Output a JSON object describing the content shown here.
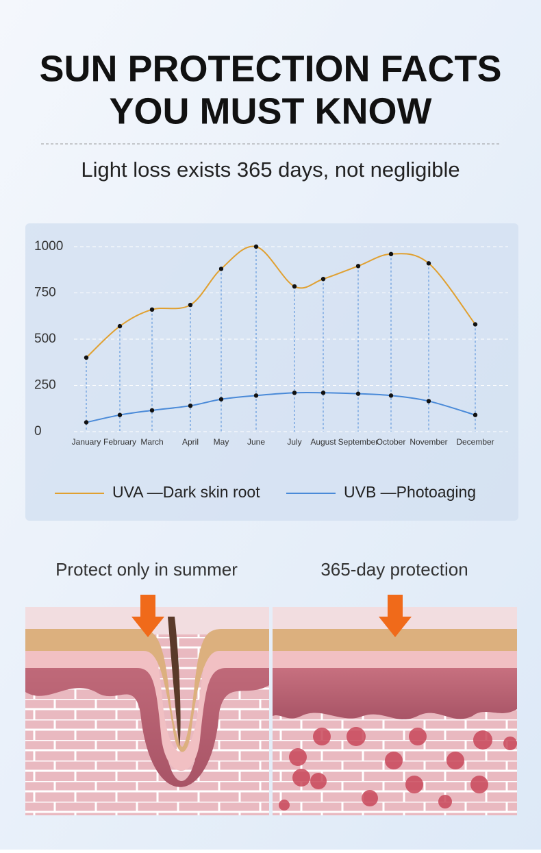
{
  "header": {
    "title_line1": "SUN PROTECTION FACTS",
    "title_line2": "YOU MUST KNOW",
    "subtitle": "Light loss exists 365 days, not negligible"
  },
  "chart_data": {
    "type": "line",
    "categories": [
      "January",
      "February",
      "March",
      "April",
      "May",
      "June",
      "July",
      "August",
      "September",
      "October",
      "November",
      "December"
    ],
    "series": [
      {
        "name": "UVA —Dark skin root",
        "color": "#e0a030",
        "values": [
          400,
          570,
          660,
          685,
          880,
          1000,
          785,
          825,
          895,
          960,
          910,
          580
        ]
      },
      {
        "name": "UVB —Photoaging",
        "color": "#4a8ad8",
        "values": [
          50,
          90,
          115,
          140,
          175,
          195,
          210,
          210,
          205,
          195,
          165,
          90
        ]
      }
    ],
    "ylim": [
      0,
      1000
    ],
    "yticks": [
      0,
      250,
      500,
      750,
      1000
    ],
    "grid": true
  },
  "comparison": {
    "left_label": "Protect only in summer",
    "right_label": "365-day protection"
  }
}
